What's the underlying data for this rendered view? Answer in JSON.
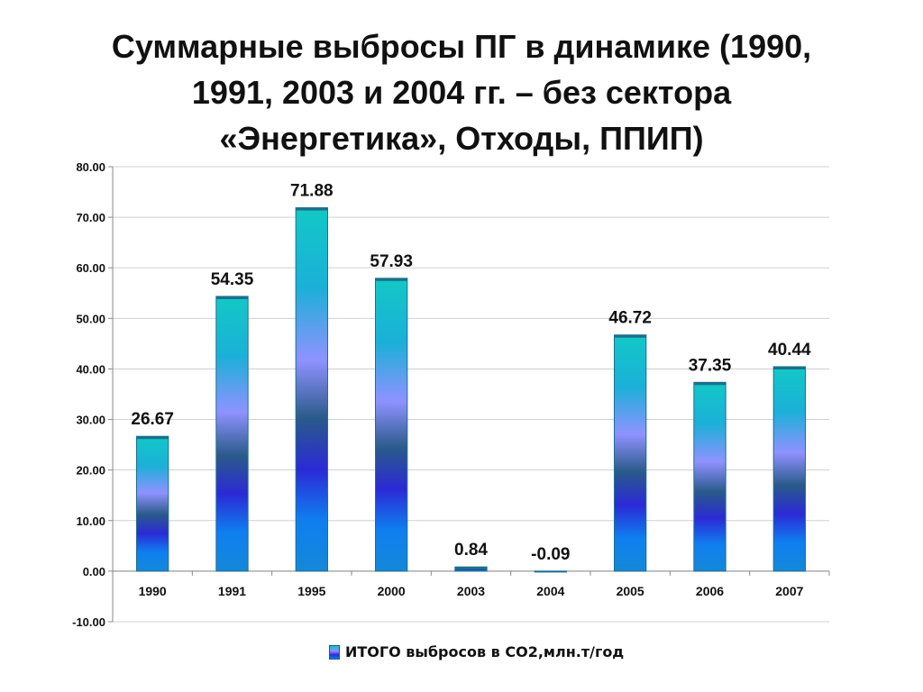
{
  "title_lines": [
    "Суммарные выбросы ПГ в динамике (1990,",
    "1991, 2003 и 2004 гг. – без сектора",
    "«Энергетика», Отходы, ППИП)"
  ],
  "chart_data": {
    "type": "bar",
    "categories": [
      "1990",
      "1991",
      "1995",
      "2000",
      "2003",
      "2004",
      "2005",
      "2006",
      "2007"
    ],
    "series": [
      {
        "name": "ИТОГО выбросов в СО2,млн.т/год",
        "values": [
          26.67,
          54.35,
          71.88,
          57.93,
          0.84,
          -0.09,
          46.72,
          37.35,
          40.44
        ]
      }
    ],
    "data_labels": [
      "26.67",
      "54.35",
      "71.88",
      "57.93",
      "0.84",
      "-0.09",
      "46.72",
      "37.35",
      "40.44"
    ],
    "ylim": [
      -10,
      80
    ],
    "y_ticks": [
      -10,
      0,
      10,
      20,
      30,
      40,
      50,
      60,
      70,
      80
    ],
    "y_tick_labels": [
      "-10.00",
      "0.00",
      "10.00",
      "20.00",
      "30.00",
      "40.00",
      "50.00",
      "60.00",
      "70.00",
      "80.00"
    ],
    "grid": true,
    "legend": "bottom",
    "xlabel": "",
    "ylabel": ""
  },
  "legend": {
    "label": "ИТОГО выбросов в СО2,млн.т/год"
  },
  "colors": {
    "bar_top": "#14c2c8",
    "bar_mid": "#8a8dff",
    "bar_dark": "#2a2bd8",
    "bar_bottom": "#0f7fe6",
    "grid": "#d0d0d0"
  }
}
